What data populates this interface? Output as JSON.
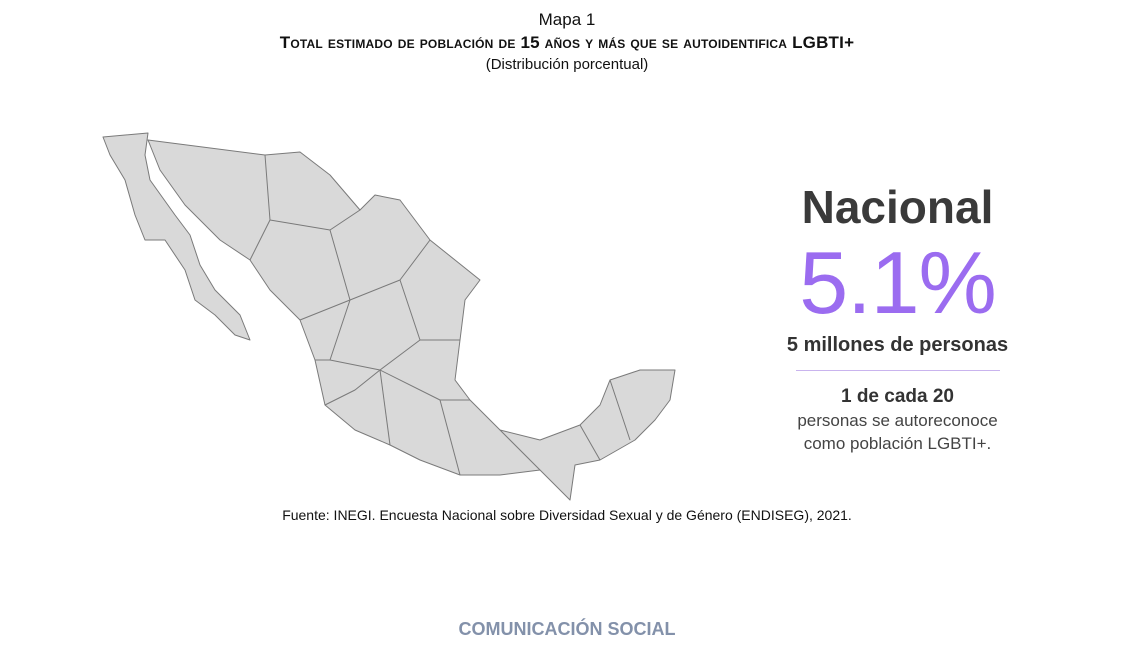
{
  "header": {
    "label": "Mapa 1",
    "title": "Total estimado de población de 15 años y más que se autoidentifica LGBTI+",
    "subtitle": "(Distribución porcentual)"
  },
  "summary": {
    "heading": "Nacional",
    "value": "5.1%",
    "people": "5 millones de personas",
    "ratio": "1 de cada 20",
    "description_line1": "personas se autoreconoce",
    "description_line2": "como población LGBTI+."
  },
  "source": "Fuente: INEGI. Encuesta Nacional sobre Diversidad Sexual y de Género (ENDISEG), 2021.",
  "footer": "COMUNICACIÓN SOCIAL"
}
